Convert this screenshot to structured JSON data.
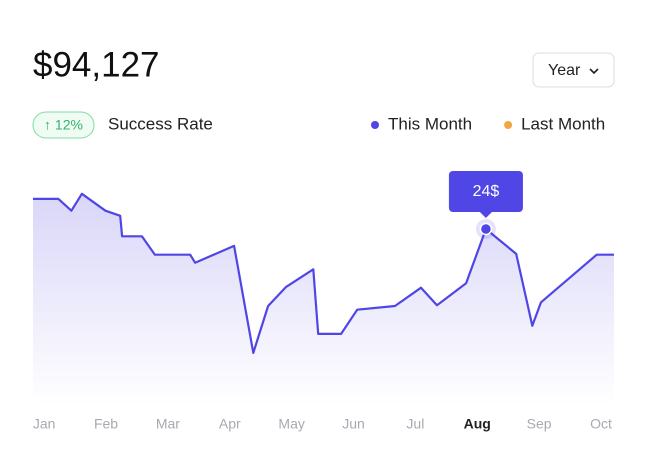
{
  "header": {
    "total": "$94,127",
    "badge": "↑ 12%",
    "badge_label": "Success Rate",
    "period_button": "Year"
  },
  "chart_data": {
    "type": "area-line",
    "x": [
      -0.18,
      0.23,
      0.44,
      0.61,
      0.99,
      1.23,
      1.26,
      1.58,
      1.79,
      2.36,
      2.44,
      3.07,
      3.38,
      3.62,
      3.91,
      4.35,
      4.43,
      4.8,
      5.06,
      5.67,
      6.09,
      6.35,
      6.82,
      7.14,
      7.63,
      7.89,
      8.03,
      8.93,
      9.21
    ],
    "series": [
      {
        "name": "This Month",
        "color": "#4f46e5",
        "values": [
          28.1,
          28.1,
          26.5,
          28.8,
          26.5,
          25.8,
          23.0,
          23.0,
          20.5,
          20.5,
          19.4,
          21.7,
          7.1,
          13.5,
          16.1,
          18.5,
          9.7,
          9.7,
          13.0,
          13.5,
          16.0,
          13.6,
          16.6,
          24.0,
          20.6,
          10.8,
          14.0,
          20.5,
          20.5
        ]
      }
    ],
    "legend": [
      {
        "name": "This Month",
        "color": "#4f46e5"
      },
      {
        "name": "Last Month",
        "color": "#f0a742"
      }
    ],
    "tooltip": {
      "index": 23,
      "label": "24$"
    },
    "xlim": [
      -0.18,
      9.21
    ],
    "ylim": [
      0,
      30
    ],
    "xticks": [
      {
        "value": 0,
        "label": "Jan"
      },
      {
        "value": 1,
        "label": "Feb"
      },
      {
        "value": 2,
        "label": "Mar"
      },
      {
        "value": 3,
        "label": "Apr"
      },
      {
        "value": 4,
        "label": "May"
      },
      {
        "value": 5,
        "label": "Jun"
      },
      {
        "value": 6,
        "label": "Jul"
      },
      {
        "value": 7,
        "label": "Aug"
      },
      {
        "value": 8,
        "label": "Sep"
      },
      {
        "value": 9,
        "label": "Oct"
      }
    ],
    "selected_tick": 7
  }
}
